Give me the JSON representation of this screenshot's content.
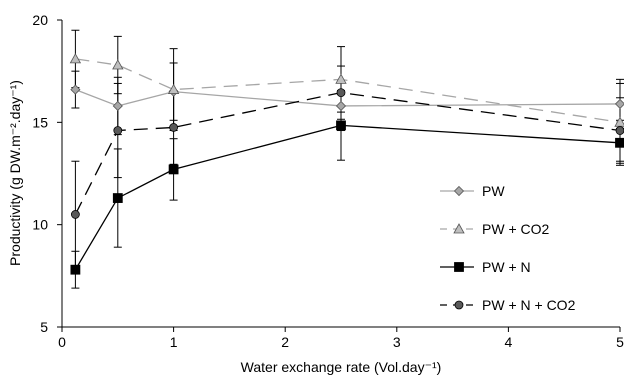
{
  "chart_data": {
    "type": "line",
    "xlabel": "Water exchange rate (Vol.day⁻¹)",
    "ylabel": "Productivity (g DW.m⁻².day⁻¹)",
    "xlim": [
      0,
      5
    ],
    "ylim": [
      5,
      20
    ],
    "xticks": [
      "0",
      "1",
      "2",
      "3",
      "4",
      "5"
    ],
    "yticks": [
      "5",
      "10",
      "15",
      "20"
    ],
    "grid": false,
    "legend_position": "right",
    "x": [
      0.12,
      0.5,
      1,
      2.5,
      5
    ],
    "series": [
      {
        "name": "PW",
        "marker": "diamond",
        "line_style": "solid",
        "line_color": "#a6a6a6",
        "marker_color": "#a6a6a6",
        "values": [
          16.6,
          15.8,
          16.5,
          15.8,
          15.9
        ],
        "errors": [
          0.9,
          1.4,
          1.4,
          1.2,
          1.2
        ]
      },
      {
        "name": "PW + CO2",
        "marker": "triangle",
        "line_style": "dashed",
        "line_color": "#a6a6a6",
        "marker_color": "#bfbfbf",
        "values": [
          18.1,
          17.8,
          16.6,
          17.1,
          15.0
        ],
        "errors": [
          1.4,
          1.4,
          2.0,
          1.6,
          1.9
        ]
      },
      {
        "name": "PW + N",
        "marker": "square",
        "line_style": "solid",
        "line_color": "#000000",
        "marker_color": "#000000",
        "values": [
          7.8,
          11.3,
          12.7,
          14.85,
          14.0
        ],
        "errors": [
          0.9,
          2.4,
          1.5,
          1.7,
          1.1
        ]
      },
      {
        "name": "PW + N + CO2",
        "marker": "circle",
        "line_style": "dashed",
        "line_color": "#000000",
        "marker_color": "#595959",
        "values": [
          10.5,
          14.6,
          14.75,
          16.45,
          14.6
        ],
        "errors": [
          2.6,
          2.3,
          1.8,
          1.3,
          1.6
        ]
      }
    ]
  }
}
